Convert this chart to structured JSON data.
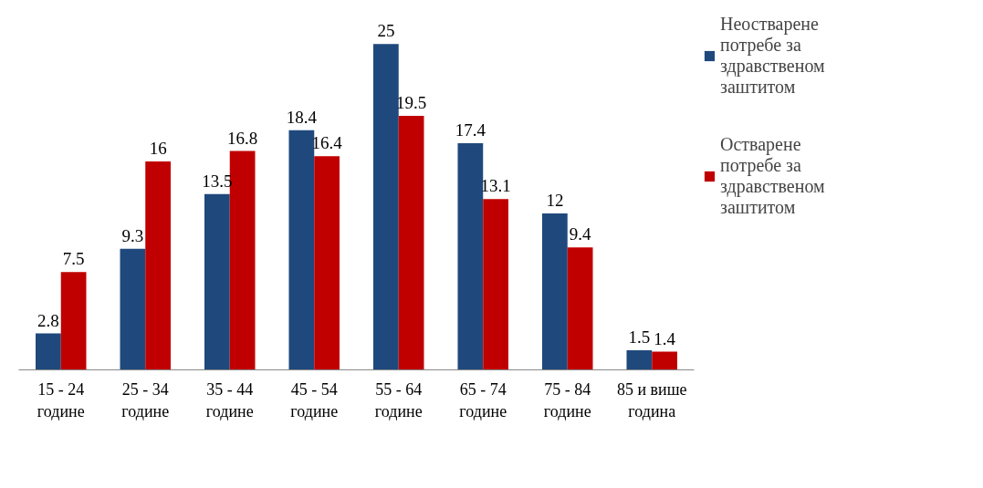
{
  "chart_data": {
    "type": "bar",
    "categories": [
      "15 - 24 године",
      "25 - 34 године",
      "35 - 44 године",
      "45 - 54 године",
      "55 - 64 године",
      "65 - 74 године",
      "75 - 84 године",
      "85 и више година"
    ],
    "series": [
      {
        "name": "Неостварене потребе за здравственом заштитом",
        "color": "#1f497d",
        "values": [
          2.8,
          9.3,
          13.5,
          18.4,
          25,
          17.4,
          12,
          1.5
        ]
      },
      {
        "name": "Остварене потребе за здравственом заштитом",
        "color": "#c00000",
        "values": [
          7.5,
          16,
          16.8,
          16.4,
          19.5,
          13.1,
          9.4,
          1.4
        ]
      }
    ],
    "data_labels": true,
    "grid": false,
    "legend": "right"
  }
}
